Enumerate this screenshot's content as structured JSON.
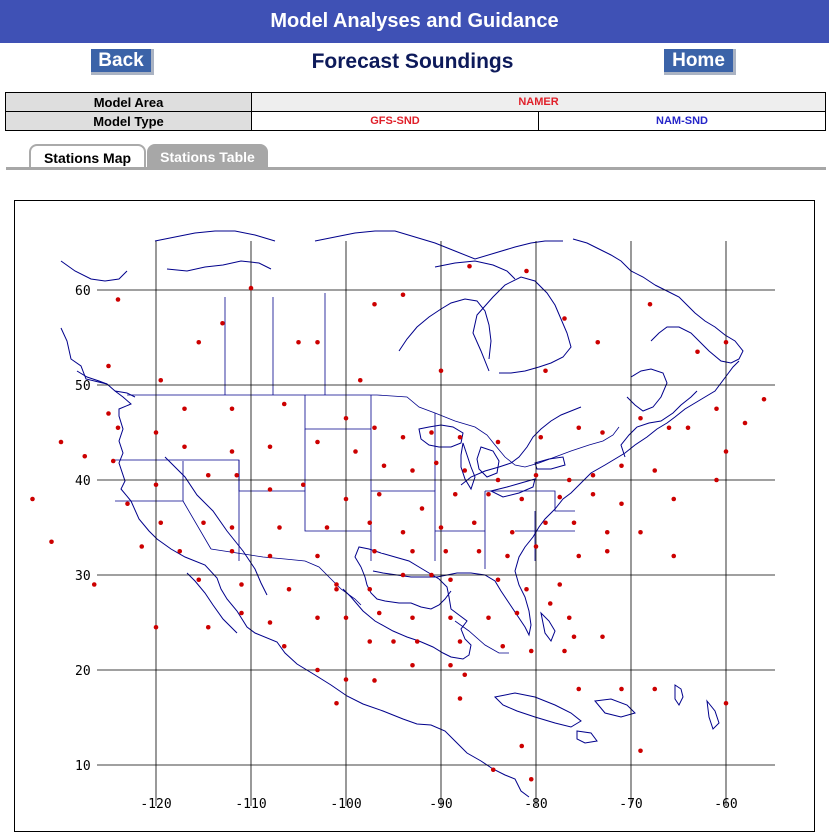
{
  "header": {
    "title": "Model Analyses and Guidance"
  },
  "nav": {
    "back_label": "Back",
    "home_label": "Home",
    "page_title": "Forecast Soundings"
  },
  "options": {
    "model_area_label": "Model Area",
    "model_area_value": "NAMER",
    "model_type_label": "Model Type",
    "model_types": [
      "GFS-SND",
      "NAM-SND"
    ]
  },
  "tabs": [
    {
      "label": "Stations Map",
      "active": true
    },
    {
      "label": "Stations Table",
      "active": false
    }
  ],
  "colors": {
    "banner": "#3f51b5",
    "station_dot": "#cc0000",
    "coastline": "#00008b",
    "grid": "#000000"
  },
  "map": {
    "lon_labels": [
      "-120",
      "-110",
      "-100",
      "-90",
      "-80",
      "-70",
      "-60"
    ],
    "lat_labels": [
      "60",
      "50",
      "40",
      "30",
      "20",
      "10"
    ],
    "stations": [
      [
        -125,
        52.0
      ],
      [
        -125,
        47.0
      ],
      [
        -127.5,
        42.5
      ],
      [
        -124,
        59
      ],
      [
        -115.5,
        54.5
      ],
      [
        -113,
        56.5
      ],
      [
        -105,
        54.5
      ],
      [
        -103,
        54.5
      ],
      [
        -110,
        60.2
      ],
      [
        -97,
        58.5
      ],
      [
        -94,
        59.5
      ],
      [
        -87,
        62.5
      ],
      [
        -81,
        62
      ],
      [
        -77,
        57.0
      ],
      [
        -73.5,
        54.5
      ],
      [
        -68,
        58.5
      ],
      [
        -63,
        53.5
      ],
      [
        -60,
        54.5
      ],
      [
        -79,
        51.5
      ],
      [
        -90,
        51.5
      ],
      [
        -119.5,
        50.5
      ],
      [
        -98.5,
        50.5
      ],
      [
        -117,
        47.5
      ],
      [
        -112,
        47.5
      ],
      [
        -106.5,
        48
      ],
      [
        -100,
        46.5
      ],
      [
        -97,
        45.5
      ],
      [
        -94,
        44.5
      ],
      [
        -91,
        45.0
      ],
      [
        -88,
        44.5
      ],
      [
        -84,
        44.0
      ],
      [
        -79.5,
        44.5
      ],
      [
        -75.5,
        45.5
      ],
      [
        -73,
        45.0
      ],
      [
        -69,
        46.5
      ],
      [
        -66,
        45.5
      ],
      [
        -64,
        45.5
      ],
      [
        -61,
        47.5
      ],
      [
        -58,
        46
      ],
      [
        -56,
        48.5
      ],
      [
        -130,
        44.0
      ],
      [
        -124,
        45.5
      ],
      [
        -120,
        45
      ],
      [
        -117,
        43.5
      ],
      [
        -112,
        43.0
      ],
      [
        -108,
        43.5
      ],
      [
        -103,
        44
      ],
      [
        -99,
        43.0
      ],
      [
        -96,
        41.5
      ],
      [
        -93,
        41.0
      ],
      [
        -90.5,
        41.8
      ],
      [
        -87.5,
        41
      ],
      [
        -84,
        40
      ],
      [
        -80,
        40.5
      ],
      [
        -76.5,
        40
      ],
      [
        -74,
        40.5
      ],
      [
        -71,
        41.5
      ],
      [
        -67.5,
        41
      ],
      [
        -60,
        43.0
      ],
      [
        -61,
        40.0
      ],
      [
        -124.5,
        42
      ],
      [
        -120,
        39.5
      ],
      [
        -114.5,
        40.5
      ],
      [
        -111.5,
        40.5
      ],
      [
        -108,
        39
      ],
      [
        -104.5,
        39.5
      ],
      [
        -100,
        38
      ],
      [
        -96.5,
        38.5
      ],
      [
        -92,
        37.0
      ],
      [
        -88.5,
        38.5
      ],
      [
        -85,
        38.5
      ],
      [
        -81.5,
        38.0
      ],
      [
        -77.5,
        38.2
      ],
      [
        -74,
        38.5
      ],
      [
        -71,
        37.5
      ],
      [
        -65.5,
        38.0
      ],
      [
        -133,
        38.0
      ],
      [
        -123,
        37.5
      ],
      [
        -119.5,
        35.5
      ],
      [
        -115,
        35.5
      ],
      [
        -112,
        35.0
      ],
      [
        -107,
        35
      ],
      [
        -102,
        35.0
      ],
      [
        -97.5,
        35.5
      ],
      [
        -94,
        34.5
      ],
      [
        -90,
        35.0
      ],
      [
        -86.5,
        35.5
      ],
      [
        -82.5,
        34.5
      ],
      [
        -79,
        35.5
      ],
      [
        -76,
        35.5
      ],
      [
        -72.5,
        34.5
      ],
      [
        -69.0,
        34.5
      ],
      [
        -131,
        33.5
      ],
      [
        -121.5,
        33.0
      ],
      [
        -117.5,
        32.5
      ],
      [
        -112,
        32.5
      ],
      [
        -108,
        32
      ],
      [
        -103,
        32.0
      ],
      [
        -97,
        32.5
      ],
      [
        -93,
        32.5
      ],
      [
        -89.5,
        32.5
      ],
      [
        -86,
        32.5
      ],
      [
        -83,
        32.0
      ],
      [
        -80,
        33.0
      ],
      [
        -75.5,
        32.0
      ],
      [
        -72.5,
        32.5
      ],
      [
        -65.5,
        32.0
      ],
      [
        -126.5,
        29.0
      ],
      [
        -115.5,
        29.5
      ],
      [
        -111,
        29.0
      ],
      [
        -106,
        28.5
      ],
      [
        -101,
        29.0
      ],
      [
        -97.5,
        28.5
      ],
      [
        -94,
        30.0
      ],
      [
        -91,
        30.0
      ],
      [
        -89,
        29.5
      ],
      [
        -84,
        29.5
      ],
      [
        -81,
        28.5
      ],
      [
        -77.5,
        29.0
      ],
      [
        -120,
        24.5
      ],
      [
        -114.5,
        24.5
      ],
      [
        -111,
        26.0
      ],
      [
        -108,
        25.0
      ],
      [
        -103,
        25.5
      ],
      [
        -100,
        25.5
      ],
      [
        -96.5,
        26.0
      ],
      [
        -93,
        25.5
      ],
      [
        -89,
        25.5
      ],
      [
        -85,
        25.5
      ],
      [
        -82,
        26.0
      ],
      [
        -78.5,
        27.0
      ],
      [
        -76.5,
        25.5
      ],
      [
        -76,
        23.5
      ],
      [
        -73,
        23.5
      ],
      [
        -101,
        28.5
      ],
      [
        -97.5,
        23.0
      ],
      [
        -95,
        23.0
      ],
      [
        -92.5,
        23.0
      ],
      [
        -88,
        23.0
      ],
      [
        -83.5,
        22.5
      ],
      [
        -80.5,
        22.0
      ],
      [
        -77,
        22
      ],
      [
        -106.5,
        22.5
      ],
      [
        -103,
        20.0
      ],
      [
        -100,
        19
      ],
      [
        -97,
        18.9
      ],
      [
        -93,
        20.5
      ],
      [
        -89,
        20.5
      ],
      [
        -87.5,
        19.5
      ],
      [
        -75.5,
        18.0
      ],
      [
        -71,
        18.0
      ],
      [
        -67.5,
        18.0
      ],
      [
        -60.0,
        16.5
      ],
      [
        -101,
        16.5
      ],
      [
        -88,
        17
      ],
      [
        -81.5,
        12.0
      ],
      [
        -69,
        11.5
      ],
      [
        -84.5,
        9.5
      ],
      [
        -80.5,
        8.5
      ]
    ]
  }
}
